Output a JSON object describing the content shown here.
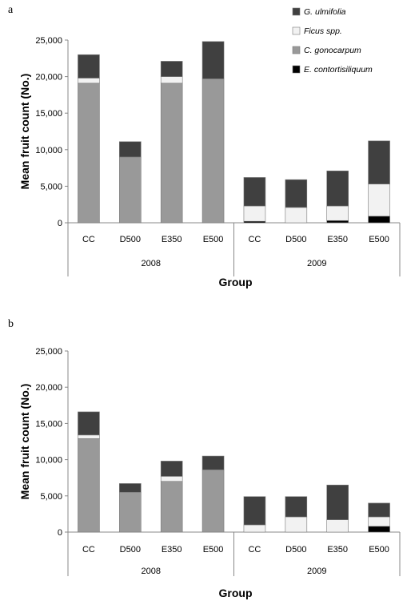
{
  "chart_data": [
    {
      "panel": "a",
      "type": "bar",
      "stacked": true,
      "groups": [
        {
          "label": "2008",
          "categories": [
            "CC",
            "D500",
            "E350",
            "E500"
          ]
        },
        {
          "label": "2009",
          "categories": [
            "CC",
            "D500",
            "E350",
            "E500"
          ]
        }
      ],
      "series": [
        {
          "name": "E. contortisiliquum",
          "color": "#000000",
          "values": [
            0,
            0,
            0,
            0,
            200,
            0,
            300,
            900
          ]
        },
        {
          "name": "C. gonocarpum",
          "color": "#999999",
          "values": [
            19100,
            9000,
            19100,
            19700,
            0,
            0,
            0,
            0
          ]
        },
        {
          "name": "Ficus spp.",
          "color": "#f2f2f2",
          "values": [
            700,
            0,
            900,
            0,
            2100,
            2100,
            2000,
            4400
          ]
        },
        {
          "name": "G. ulmifolia",
          "color": "#404040",
          "values": [
            3200,
            2100,
            2100,
            5100,
            3900,
            3800,
            4800,
            5900
          ]
        }
      ],
      "legend_order": [
        "G. ulmifolia",
        "Ficus spp.",
        "C. gonocarpum",
        "E. contortisiliquum"
      ],
      "legend_position": "top-right",
      "ylabel": "Mean fruit count (No.)",
      "xlabel": "Group",
      "ylim": [
        0,
        25000
      ],
      "yticks": [
        "0",
        "5,000",
        "10,000",
        "15,000",
        "20,000",
        "25,000"
      ],
      "grid": false
    },
    {
      "panel": "b",
      "type": "bar",
      "stacked": true,
      "groups": [
        {
          "label": "2008",
          "categories": [
            "CC",
            "D500",
            "E350",
            "E500"
          ]
        },
        {
          "label": "2009",
          "categories": [
            "CC",
            "D500",
            "E350",
            "E500"
          ]
        }
      ],
      "series": [
        {
          "name": "E. contortisiliquum",
          "color": "#000000",
          "values": [
            0,
            0,
            0,
            0,
            0,
            0,
            0,
            800
          ]
        },
        {
          "name": "C. gonocarpum",
          "color": "#999999",
          "values": [
            12900,
            5500,
            7000,
            8600,
            0,
            0,
            0,
            0
          ]
        },
        {
          "name": "Ficus spp.",
          "color": "#f2f2f2",
          "values": [
            500,
            0,
            700,
            0,
            1000,
            2100,
            1700,
            1300
          ]
        },
        {
          "name": "G. ulmifolia",
          "color": "#404040",
          "values": [
            3200,
            1200,
            2100,
            1900,
            3900,
            2800,
            4800,
            1900
          ]
        }
      ],
      "ylabel": "Mean fruit count (No.)",
      "xlabel": "Group",
      "ylim": [
        0,
        25000
      ],
      "yticks": [
        "0",
        "5,000",
        "10,000",
        "15,000",
        "20,000",
        "25,000"
      ],
      "grid": false
    }
  ]
}
